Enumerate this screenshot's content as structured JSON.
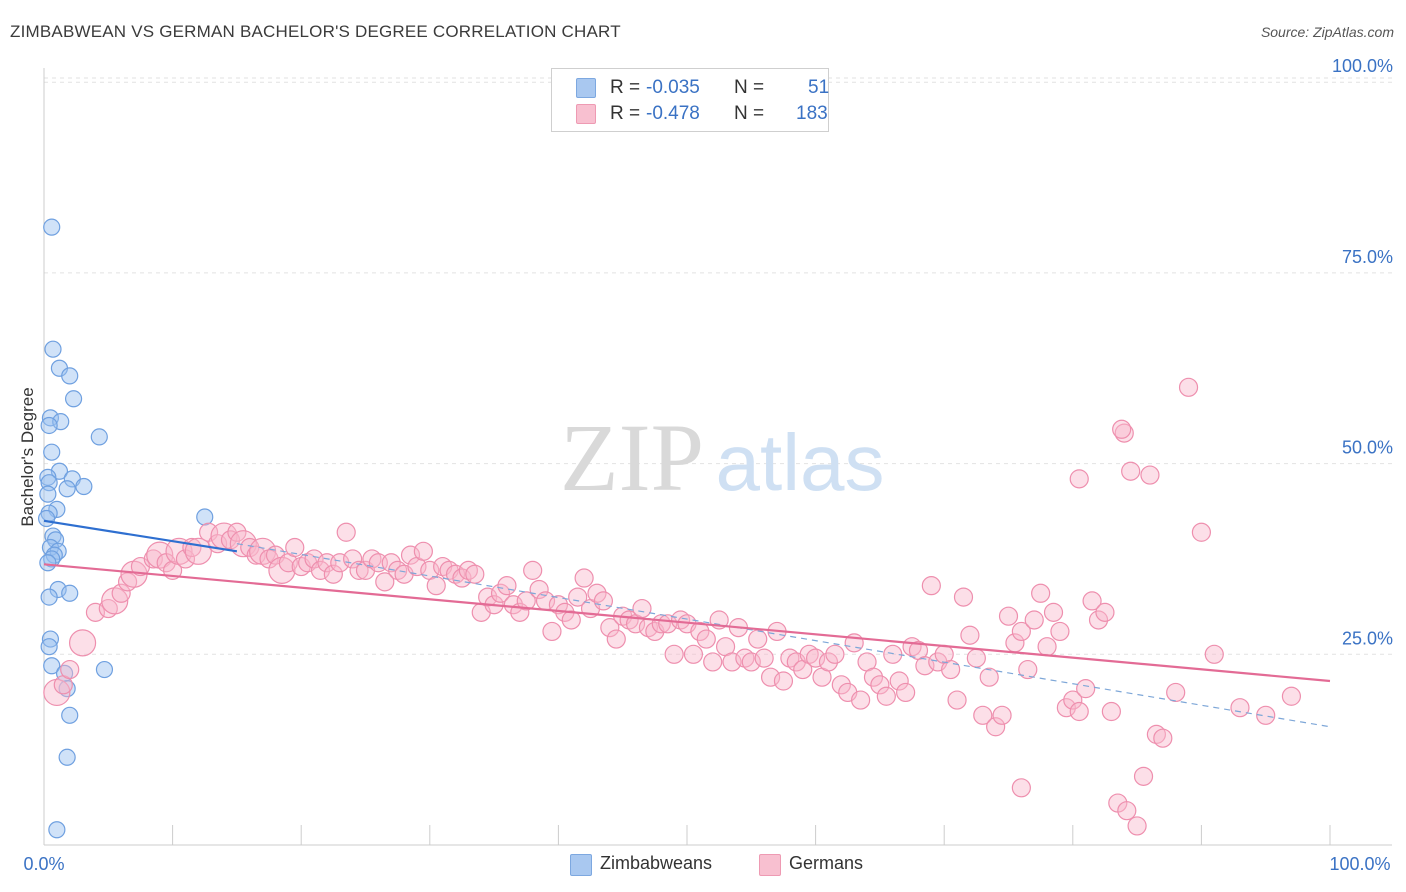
{
  "title": "ZIMBABWEAN VS GERMAN BACHELOR'S DEGREE CORRELATION CHART",
  "source": "Source: ZipAtlas.com",
  "watermark": {
    "zip": "ZIP",
    "atlas": "atlas"
  },
  "legend": {
    "series": [
      {
        "r_label": "R =",
        "r_value": "-0.035",
        "n_label": "N =",
        "n_value": "51",
        "color": "#a9c8f0",
        "border": "#7da8e0"
      },
      {
        "r_label": "R =",
        "r_value": "-0.478",
        "n_label": "N =",
        "n_value": "183",
        "color": "#f8c0d0",
        "border": "#ee9ab3"
      }
    ]
  },
  "bottom_legend": [
    {
      "label": "Zimbabweans",
      "color": "#a9c8f0",
      "border": "#7da8e0"
    },
    {
      "label": "Germans",
      "color": "#f8c0d0",
      "border": "#ee9ab3"
    }
  ],
  "chart_data": {
    "type": "scatter",
    "title": "ZIMBABWEAN VS GERMAN BACHELOR'S DEGREE CORRELATION CHART",
    "xlabel": "",
    "ylabel": "Bachelor's Degree",
    "xlim": [
      0,
      100
    ],
    "ylim": [
      0,
      100
    ],
    "x_tick_labels": [
      "0.0%",
      "100.0%"
    ],
    "y_tick_labels": [
      "25.0%",
      "50.0%",
      "75.0%",
      "100.0%"
    ],
    "y_ticks": [
      25,
      50,
      75,
      100
    ],
    "grid": true,
    "series": [
      {
        "name": "Zimbabweans",
        "color": "#6fa0e0",
        "fill": "rgba(150,190,240,0.45)",
        "trend": {
          "x": [
            0,
            15
          ],
          "y": [
            42.5,
            38.5
          ],
          "color": "#2e6fd0"
        },
        "points": [
          [
            0.6,
            81
          ],
          [
            0.7,
            65
          ],
          [
            1.2,
            62.5
          ],
          [
            2,
            61.5
          ],
          [
            2.3,
            58.5
          ],
          [
            0.5,
            56
          ],
          [
            1.3,
            55.5
          ],
          [
            0.4,
            55
          ],
          [
            4.3,
            53.5
          ],
          [
            0.6,
            51.5
          ],
          [
            1.2,
            49
          ],
          [
            2.2,
            48
          ],
          [
            0.3,
            48.2
          ],
          [
            0.4,
            47.5
          ],
          [
            3.1,
            47
          ],
          [
            1.8,
            46.7
          ],
          [
            0.3,
            46
          ],
          [
            1,
            44
          ],
          [
            0.4,
            43.5
          ],
          [
            0.2,
            42.8
          ],
          [
            12.5,
            43
          ],
          [
            0.7,
            40.5
          ],
          [
            0.9,
            40
          ],
          [
            0.5,
            39
          ],
          [
            1.1,
            38.5
          ],
          [
            0.8,
            38
          ],
          [
            0.6,
            37.5
          ],
          [
            0.3,
            37
          ],
          [
            1.1,
            33.5
          ],
          [
            2,
            33
          ],
          [
            0.4,
            32.5
          ],
          [
            0.5,
            27
          ],
          [
            0.4,
            26
          ],
          [
            0.6,
            23.5
          ],
          [
            4.7,
            23
          ],
          [
            1.6,
            22.5
          ],
          [
            1.8,
            20.5
          ],
          [
            2,
            17
          ],
          [
            1.8,
            11.5
          ],
          [
            1,
            2
          ]
        ]
      },
      {
        "name": "Germans",
        "color": "#ee8fae",
        "fill": "rgba(248,185,205,0.45)",
        "trend": {
          "x": [
            0,
            100
          ],
          "y": [
            36.8,
            21.5
          ],
          "color": "#e36b95"
        },
        "dashed_trend": {
          "x": [
            15,
            100
          ],
          "y": [
            39.5,
            15.5
          ],
          "color": "#7ea7d8"
        },
        "points": [
          [
            1,
            20
          ],
          [
            1.5,
            21
          ],
          [
            2,
            23
          ],
          [
            3,
            26.5
          ],
          [
            4,
            30.5
          ],
          [
            5,
            31
          ],
          [
            5.5,
            32
          ],
          [
            6,
            33
          ],
          [
            6.5,
            34.5
          ],
          [
            7,
            35.5
          ],
          [
            7.5,
            36.5
          ],
          [
            8.5,
            37.5
          ],
          [
            9,
            38
          ],
          [
            9.5,
            37
          ],
          [
            10,
            36
          ],
          [
            10.5,
            38.5
          ],
          [
            11,
            37.5
          ],
          [
            11.5,
            39
          ],
          [
            12,
            38.5
          ],
          [
            12.8,
            41
          ],
          [
            13.5,
            39.5
          ],
          [
            14,
            40.5
          ],
          [
            14.5,
            40
          ],
          [
            15,
            41
          ],
          [
            15.5,
            39.5
          ],
          [
            16,
            39
          ],
          [
            16.5,
            38
          ],
          [
            17,
            38.5
          ],
          [
            17.5,
            37.5
          ],
          [
            18,
            38
          ],
          [
            18.5,
            36
          ],
          [
            19,
            37
          ],
          [
            19.5,
            39
          ],
          [
            20,
            36.5
          ],
          [
            20.5,
            37
          ],
          [
            21,
            37.5
          ],
          [
            21.5,
            36
          ],
          [
            22,
            37
          ],
          [
            22.5,
            35.5
          ],
          [
            23,
            37
          ],
          [
            23.5,
            41
          ],
          [
            24,
            37.5
          ],
          [
            24.5,
            36
          ],
          [
            25,
            36
          ],
          [
            25.5,
            37.5
          ],
          [
            26,
            37
          ],
          [
            26.5,
            34.5
          ],
          [
            27,
            37
          ],
          [
            27.5,
            36
          ],
          [
            28,
            35.5
          ],
          [
            28.5,
            38
          ],
          [
            29,
            36.5
          ],
          [
            29.5,
            38.5
          ],
          [
            30,
            36
          ],
          [
            30.5,
            34
          ],
          [
            31,
            36.5
          ],
          [
            31.5,
            36
          ],
          [
            32,
            35.5
          ],
          [
            32.5,
            35
          ],
          [
            33,
            36
          ],
          [
            33.5,
            35.5
          ],
          [
            34,
            30.5
          ],
          [
            34.5,
            32.5
          ],
          [
            35,
            31.5
          ],
          [
            35.5,
            33
          ],
          [
            36,
            34
          ],
          [
            36.5,
            31.5
          ],
          [
            37,
            30.5
          ],
          [
            37.5,
            32
          ],
          [
            38,
            36
          ],
          [
            38.5,
            33.5
          ],
          [
            39,
            32
          ],
          [
            39.5,
            28
          ],
          [
            40,
            31.5
          ],
          [
            40.5,
            30.5
          ],
          [
            41,
            29.5
          ],
          [
            41.5,
            32.5
          ],
          [
            42,
            35
          ],
          [
            42.5,
            31
          ],
          [
            43,
            33
          ],
          [
            43.5,
            32
          ],
          [
            44,
            28.5
          ],
          [
            44.5,
            27
          ],
          [
            45,
            30
          ],
          [
            45.5,
            29.5
          ],
          [
            46,
            29
          ],
          [
            46.5,
            31
          ],
          [
            47,
            28.5
          ],
          [
            47.5,
            28
          ],
          [
            48,
            29
          ],
          [
            48.5,
            29
          ],
          [
            49,
            25
          ],
          [
            49.5,
            29.5
          ],
          [
            50,
            29
          ],
          [
            50.5,
            25
          ],
          [
            51,
            28
          ],
          [
            51.5,
            27
          ],
          [
            52,
            24
          ],
          [
            52.5,
            29.5
          ],
          [
            53,
            26
          ],
          [
            53.5,
            24
          ],
          [
            54,
            28.5
          ],
          [
            54.5,
            24.5
          ],
          [
            55,
            24
          ],
          [
            55.5,
            27
          ],
          [
            56,
            24.5
          ],
          [
            56.5,
            22
          ],
          [
            57,
            28
          ],
          [
            57.5,
            21.5
          ],
          [
            58,
            24.5
          ],
          [
            58.5,
            24
          ],
          [
            59,
            23
          ],
          [
            59.5,
            25
          ],
          [
            60,
            24.5
          ],
          [
            60.5,
            22
          ],
          [
            61,
            24
          ],
          [
            61.5,
            25
          ],
          [
            62,
            21
          ],
          [
            62.5,
            20
          ],
          [
            63,
            26.5
          ],
          [
            63.5,
            19
          ],
          [
            64,
            24
          ],
          [
            64.5,
            22
          ],
          [
            65,
            21
          ],
          [
            65.5,
            19.5
          ],
          [
            66,
            25
          ],
          [
            66.5,
            21.5
          ],
          [
            67,
            20
          ],
          [
            67.5,
            26
          ],
          [
            68,
            25.5
          ],
          [
            68.5,
            23.5
          ],
          [
            69,
            34
          ],
          [
            69.5,
            24
          ],
          [
            70,
            25
          ],
          [
            70.5,
            23
          ],
          [
            71,
            19
          ],
          [
            71.5,
            32.5
          ],
          [
            72,
            27.5
          ],
          [
            72.5,
            24.5
          ],
          [
            73,
            17
          ],
          [
            73.5,
            22
          ],
          [
            74,
            15.5
          ],
          [
            74.5,
            17
          ],
          [
            75,
            30
          ],
          [
            75.5,
            26.5
          ],
          [
            76,
            28
          ],
          [
            76.5,
            23
          ],
          [
            77,
            29.5
          ],
          [
            77.5,
            33
          ],
          [
            78,
            26
          ],
          [
            78.5,
            30.5
          ],
          [
            79,
            28
          ],
          [
            79.5,
            18
          ],
          [
            80,
            19
          ],
          [
            80.5,
            17.5
          ],
          [
            81,
            20.5
          ],
          [
            81.5,
            32
          ],
          [
            82,
            29.5
          ],
          [
            82.5,
            30.5
          ],
          [
            83,
            17.5
          ],
          [
            83.5,
            5.5
          ],
          [
            84,
            54
          ],
          [
            84.5,
            49
          ],
          [
            85,
            2.5
          ],
          [
            85.5,
            9
          ],
          [
            86,
            48.5
          ],
          [
            86.5,
            14.5
          ],
          [
            87,
            14
          ],
          [
            88,
            20
          ],
          [
            89,
            60
          ],
          [
            90,
            41
          ],
          [
            91,
            25
          ],
          [
            93,
            18
          ],
          [
            95,
            17
          ],
          [
            97,
            19.5
          ],
          [
            76,
            7.5
          ],
          [
            80.5,
            48
          ],
          [
            83.8,
            54.5
          ],
          [
            84.2,
            4.5
          ]
        ]
      }
    ]
  }
}
